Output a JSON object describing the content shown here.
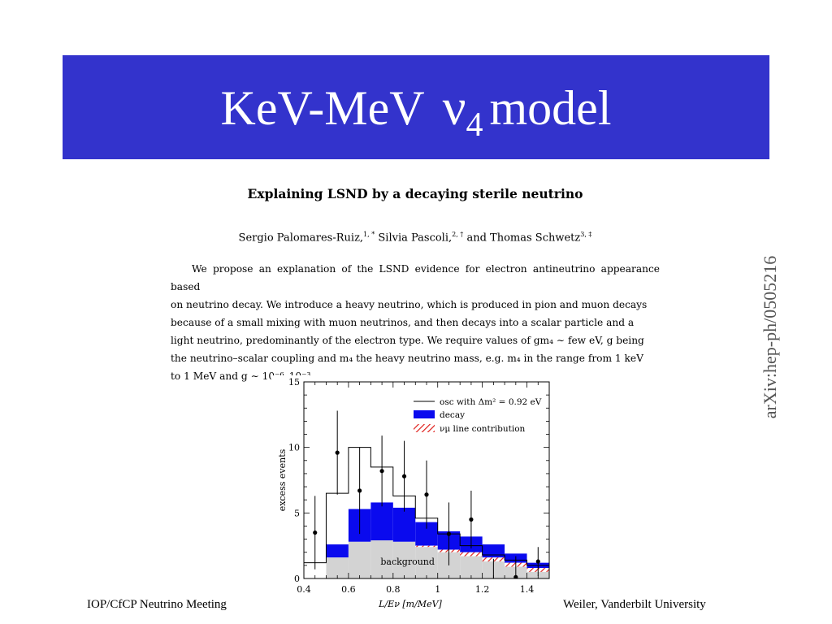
{
  "slide": {
    "title_prefix": "KeV-MeV",
    "title_symbol": "ν",
    "title_subscript": "4",
    "title_suffix": "model"
  },
  "paper": {
    "title": "Explaining LSND by a decaying sterile neutrino",
    "authors": "Sergio Palomares-Ruiz,",
    "author1_mark": "1, *",
    "author2": "Silvia Pascoli,",
    "author2_mark": "2, †",
    "author3": "and Thomas Schwetz",
    "author3_mark": "3, ‡",
    "abstract_lines": [
      "We propose an explanation of the LSND evidence for electron antineutrino appearance based",
      "on neutrino decay. We introduce a heavy neutrino, which is produced in pion and muon decays",
      "because of a small mixing with muon neutrinos, and then decays into a scalar particle and a",
      "light neutrino, predominantly of the electron type. We require values of gm₄ ∼ few eV, g being",
      "the neutrino–scalar coupling and m₄ the heavy neutrino mass, e.g. m₄ in the range from 1 keV",
      "to 1 MeV and g ∼ 10⁻⁶–10⁻³."
    ],
    "arxiv_id": "arXiv:hep-ph/0505216"
  },
  "footer": {
    "left": "IOP/CfCP Neutrino Meeting",
    "right": "Weiler, Vanderbilt University"
  },
  "colors": {
    "title_bar": "#3333cc",
    "decay": "#0a0aee",
    "background_fill": "#d3d3d3",
    "hatch": "#e0201c"
  },
  "chart_data": {
    "type": "bar",
    "xlabel": "L/E_ν [m/MeV]",
    "ylabel": "excess events",
    "xlim": [
      0.4,
      1.5
    ],
    "ylim": [
      0,
      15
    ],
    "xticks": [
      "0.4",
      "0.6",
      "0.8",
      "1",
      "1.2",
      "1.4"
    ],
    "xtick_values": [
      0.4,
      0.6,
      0.8,
      1.0,
      1.2,
      1.4
    ],
    "yticks": [
      "0",
      "5",
      "10",
      "15"
    ],
    "ytick_values": [
      0,
      5,
      10,
      15
    ],
    "bin_edges": [
      0.4,
      0.5,
      0.6,
      0.7,
      0.8,
      0.9,
      1.0,
      1.1,
      1.2,
      1.3,
      1.4,
      1.5
    ],
    "background": [
      0,
      1.6,
      2.8,
      2.9,
      2.8,
      2.4,
      2.0,
      1.7,
      1.3,
      0.9,
      0.5
    ],
    "numu_line_top": [
      0,
      1.6,
      2.8,
      2.9,
      2.8,
      2.5,
      2.2,
      2.0,
      1.6,
      1.2,
      0.8
    ],
    "decay_top": [
      0,
      2.6,
      5.3,
      5.8,
      5.4,
      4.3,
      3.6,
      3.2,
      2.6,
      1.9,
      1.2
    ],
    "osc": [
      1.2,
      6.5,
      10.0,
      8.5,
      6.3,
      4.6,
      3.4,
      2.5,
      1.8,
      1.4,
      1.0
    ],
    "data_points": [
      {
        "x": 0.45,
        "y": 3.5,
        "err": 2.8
      },
      {
        "x": 0.55,
        "y": 9.6,
        "err": 3.2
      },
      {
        "x": 0.65,
        "y": 6.7,
        "err": 3.3
      },
      {
        "x": 0.75,
        "y": 8.2,
        "err": 2.7
      },
      {
        "x": 0.85,
        "y": 7.8,
        "err": 2.7
      },
      {
        "x": 0.95,
        "y": 6.4,
        "err": 2.6
      },
      {
        "x": 1.05,
        "y": 3.4,
        "err": 2.4
      },
      {
        "x": 1.15,
        "y": 4.5,
        "err": 2.2
      },
      {
        "x": 1.25,
        "y": -0.5,
        "err": 2.0
      },
      {
        "x": 1.35,
        "y": 0.1,
        "err": 1.6
      },
      {
        "x": 1.45,
        "y": 1.3,
        "err": 1.1
      }
    ],
    "legend": {
      "osc": "osc with Δm² = 0.92 eV",
      "decay": "decay",
      "numu": "ν_μ line contribution"
    },
    "annotation": "background",
    "grid": false,
    "legend_position": "top-right"
  }
}
